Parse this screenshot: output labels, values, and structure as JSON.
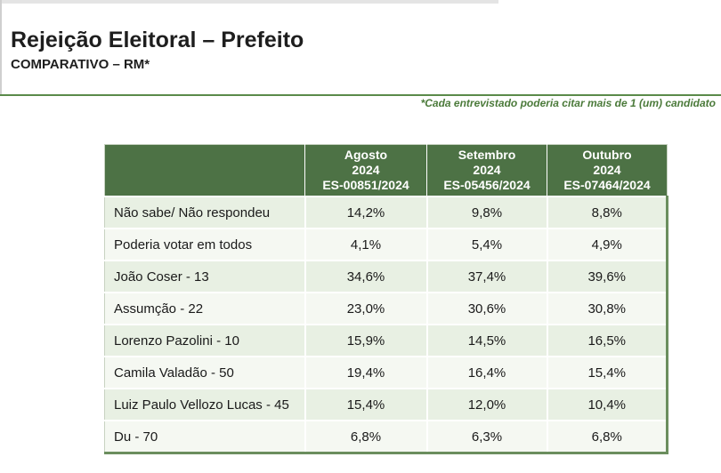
{
  "header": {
    "title": "Rejeição Eleitoral – Prefeito",
    "subtitle": "COMPARATIVO – RM*",
    "footnote": "*Cada entrevistado poderia citar mais de 1 (um) candidato"
  },
  "table": {
    "columns": [
      {
        "month": "Agosto",
        "year": "2024",
        "code": "ES-00851/2024"
      },
      {
        "month": "Setembro",
        "year": "2024",
        "code": "ES-05456/2024"
      },
      {
        "month": "Outubro",
        "year": "2024",
        "code": "ES-07464/2024"
      }
    ],
    "rows": [
      {
        "label": "Não sabe/ Não respondeu",
        "values": [
          "14,2%",
          "9,8%",
          "8,8%"
        ]
      },
      {
        "label": "Poderia votar em todos",
        "values": [
          "4,1%",
          "5,4%",
          "4,9%"
        ]
      },
      {
        "label": "João Coser - 13",
        "values": [
          "34,6%",
          "37,4%",
          "39,6%"
        ]
      },
      {
        "label": "Assumção - 22",
        "values": [
          "23,0%",
          "30,6%",
          "30,8%"
        ]
      },
      {
        "label": "Lorenzo Pazolini - 10",
        "values": [
          "15,9%",
          "14,5%",
          "16,5%"
        ]
      },
      {
        "label": "Camila Valadão - 50",
        "values": [
          "19,4%",
          "16,4%",
          "15,4%"
        ]
      },
      {
        "label": "Luiz Paulo Vellozo Lucas - 45",
        "values": [
          "15,4%",
          "12,0%",
          "10,4%"
        ]
      },
      {
        "label": "Du - 70",
        "values": [
          "6,8%",
          "6,3%",
          "6,8%"
        ]
      }
    ]
  },
  "colors": {
    "header_green": "#4d7245",
    "row_light": "#e8f0e3",
    "row_lighter": "#f5f8f2",
    "footnote_green": "#4b7a3a"
  }
}
